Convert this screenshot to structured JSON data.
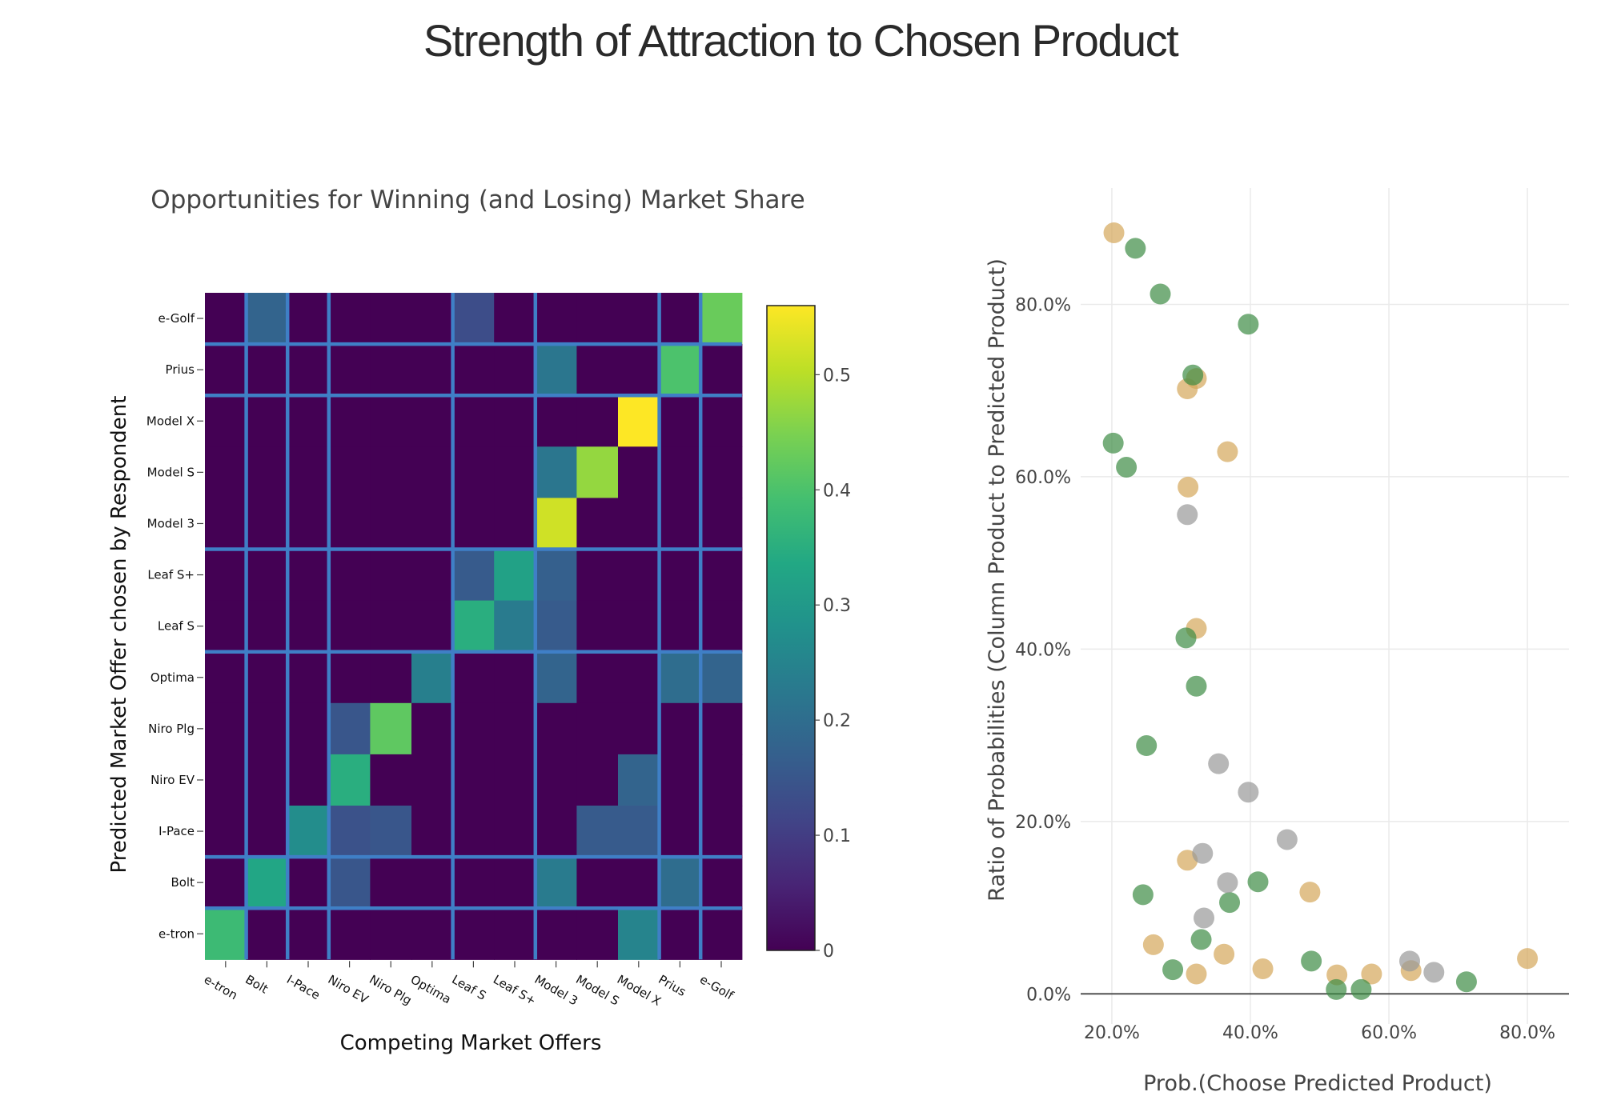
{
  "title": "Strength of Attraction to Chosen Product",
  "chart_data": [
    {
      "type": "heatmap",
      "title": "Opportunities for Winning (and Losing) Market Share",
      "xlabel": "Competing Market Offers",
      "ylabel": "Predicted Market Offer chosen by Respondent",
      "x_categories": [
        "e-tron",
        "Bolt",
        "I-Pace",
        "Niro EV",
        "Niro Plg",
        "Optima",
        "Leaf S",
        "Leaf S+",
        "Model 3",
        "Model S",
        "Model X",
        "Prius",
        "e-Golf"
      ],
      "y_categories": [
        "e-Golf",
        "Prius",
        "Model X",
        "Model S",
        "Model 3",
        "Leaf S+",
        "Leaf S",
        "Optima",
        "Niro Plg",
        "Niro EV",
        "I-Pace",
        "Bolt",
        "e-tron"
      ],
      "group_breaks_x": [
        "e-tron",
        "Bolt",
        "I-Pace",
        "Optima",
        "Leaf S+",
        "Model X",
        "Prius"
      ],
      "group_breaks_y": [
        "e-Golf",
        "Prius",
        "Model 3",
        "Leaf S",
        "I-Pace",
        "Bolt"
      ],
      "values": [
        [
          0,
          0.18,
          0,
          0,
          0,
          0,
          0.13,
          0,
          0,
          0,
          0,
          0,
          0.43
        ],
        [
          0,
          0,
          0,
          0,
          0,
          0,
          0,
          0,
          0.22,
          0,
          0,
          0.4,
          0
        ],
        [
          0,
          0,
          0,
          0,
          0,
          0,
          0,
          0,
          0,
          0,
          0.56,
          0,
          0
        ],
        [
          0,
          0,
          0,
          0,
          0,
          0,
          0,
          0,
          0.22,
          0.47,
          0,
          0,
          0
        ],
        [
          0,
          0,
          0,
          0,
          0,
          0,
          0,
          0,
          0.52,
          0,
          0,
          0,
          0
        ],
        [
          0,
          0,
          0,
          0,
          0,
          0,
          0.16,
          0.32,
          0.17,
          0,
          0,
          0,
          0
        ],
        [
          0,
          0,
          0,
          0,
          0,
          0,
          0.35,
          0.23,
          0.16,
          0,
          0,
          0,
          0
        ],
        [
          0,
          0,
          0,
          0,
          0,
          0.24,
          0,
          0,
          0.18,
          0,
          0,
          0.2,
          0.18
        ],
        [
          0,
          0,
          0,
          0.15,
          0.42,
          0,
          0,
          0,
          0,
          0,
          0,
          0,
          0
        ],
        [
          0,
          0,
          0,
          0.35,
          0,
          0,
          0,
          0,
          0,
          0,
          0.18,
          0,
          0
        ],
        [
          0,
          0,
          0.27,
          0.14,
          0.15,
          0,
          0,
          0,
          0,
          0.16,
          0.16,
          0,
          0
        ],
        [
          0,
          0.33,
          0,
          0.15,
          0,
          0,
          0,
          0,
          0.23,
          0,
          0,
          0.2,
          0
        ],
        [
          0.38,
          0,
          0,
          0,
          0,
          0,
          0,
          0,
          0,
          0,
          0.25,
          0,
          0
        ]
      ],
      "colorscale": "Viridis",
      "zlim": [
        0,
        0.56
      ],
      "colorbar_ticks": [
        0,
        0.1,
        0.2,
        0.3,
        0.4,
        0.5
      ],
      "grid_color": "#3f7fc6"
    },
    {
      "type": "scatter",
      "xlabel": "Prob.(Choose Predicted Product)",
      "ylabel": "Ratio of Probabilities (Column Product to Predicted Product)",
      "xlim": [
        0.155,
        0.86
      ],
      "ylim": [
        -0.035,
        0.935
      ],
      "x_ticks": [
        0.2,
        0.4,
        0.6,
        0.8
      ],
      "x_tick_labels": [
        "20.0%",
        "40.0%",
        "60.0%",
        "80.0%"
      ],
      "y_ticks": [
        0,
        0.2,
        0.4,
        0.6,
        0.8
      ],
      "y_tick_labels": [
        "0.0%",
        "20.0%",
        "40.0%",
        "60.0%",
        "80.0%"
      ],
      "grid": true,
      "marker_opacity": 0.7,
      "series": [
        {
          "color": "#d4a65a",
          "x": [
            0.203,
            0.309,
            0.322,
            0.367,
            0.31,
            0.322,
            0.309,
            0.26,
            0.322,
            0.362,
            0.418,
            0.486,
            0.525,
            0.575,
            0.632,
            0.8
          ],
          "y": [
            0.883,
            0.702,
            0.714,
            0.629,
            0.588,
            0.424,
            0.155,
            0.057,
            0.023,
            0.046,
            0.029,
            0.118,
            0.022,
            0.023,
            0.027,
            0.041
          ]
        },
        {
          "color": "#3d8b45",
          "x": [
            0.234,
            0.27,
            0.397,
            0.317,
            0.202,
            0.221,
            0.307,
            0.322,
            0.25,
            0.245,
            0.329,
            0.37,
            0.411,
            0.288,
            0.488,
            0.524,
            0.56,
            0.712
          ],
          "y": [
            0.865,
            0.812,
            0.777,
            0.718,
            0.639,
            0.611,
            0.413,
            0.357,
            0.288,
            0.115,
            0.063,
            0.106,
            0.13,
            0.028,
            0.038,
            0.005,
            0.005,
            0.014
          ]
        },
        {
          "color": "#999999",
          "x": [
            0.309,
            0.354,
            0.397,
            0.453,
            0.331,
            0.367,
            0.333,
            0.63,
            0.665
          ],
          "y": [
            0.556,
            0.267,
            0.234,
            0.179,
            0.163,
            0.129,
            0.088,
            0.038,
            0.025
          ]
        }
      ]
    }
  ]
}
